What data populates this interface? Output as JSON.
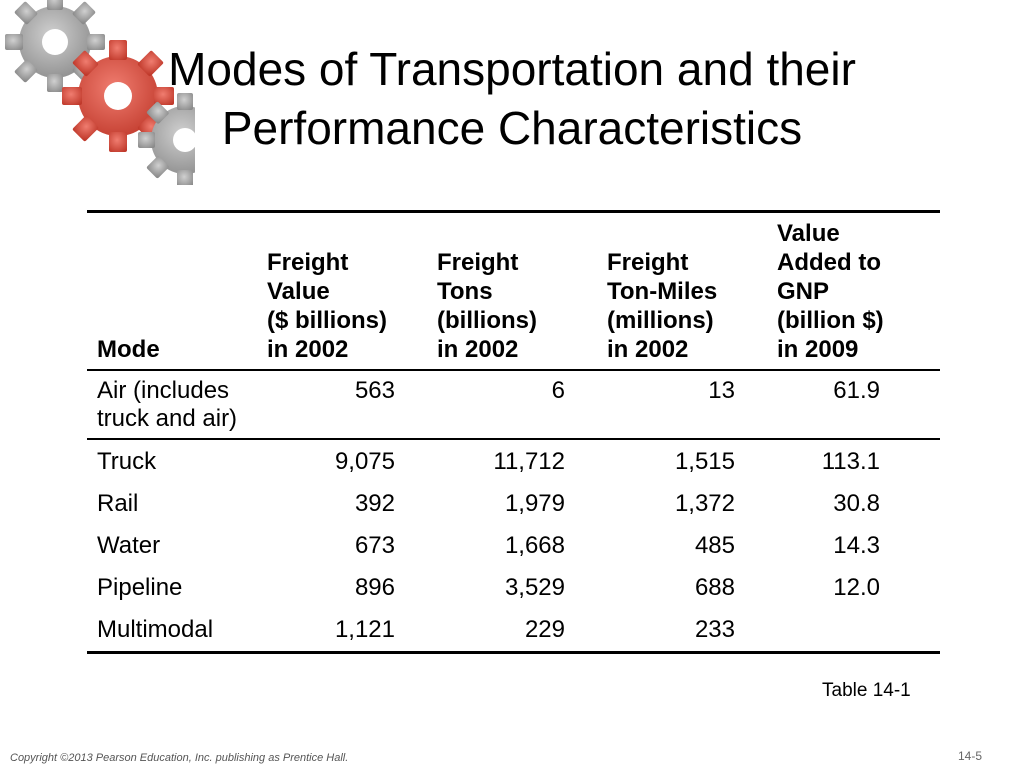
{
  "slide": {
    "title_line1": "Modes of Transportation and their",
    "title_line2": "Performance Characteristics",
    "decoration_icon": "gears-icon"
  },
  "table": {
    "headers": [
      [
        "Mode"
      ],
      [
        "Freight",
        "Value",
        "($ billions)",
        "in 2002"
      ],
      [
        "Freight",
        "Tons",
        "(billions)",
        "in 2002"
      ],
      [
        "Freight",
        "Ton-Miles",
        "(millions)",
        "in 2002"
      ],
      [
        "Value",
        "Added to",
        "GNP",
        "(billion $)",
        "in 2009"
      ]
    ],
    "air_row": {
      "mode_line1": "Air (includes",
      "mode_line2": "truck and air)",
      "values": [
        "563",
        "6",
        "13",
        "61.9"
      ]
    },
    "rows": [
      {
        "mode": "Truck",
        "values": [
          "9,075",
          "11,712",
          "1,515",
          "113.1"
        ]
      },
      {
        "mode": "Rail",
        "values": [
          "392",
          "1,979",
          "1,372",
          "30.8"
        ]
      },
      {
        "mode": "Water",
        "values": [
          "673",
          "1,668",
          "485",
          "14.3"
        ]
      },
      {
        "mode": "Pipeline",
        "values": [
          "896",
          "3,529",
          "688",
          "12.0"
        ]
      },
      {
        "mode": "Multimodal",
        "values": [
          "1,121",
          "229",
          "233",
          ""
        ]
      }
    ],
    "caption": "Table 14-1"
  },
  "footer": {
    "copyright": "Copyright ©2013 Pearson Education, Inc. publishing as Prentice Hall.",
    "page_number": "14-5"
  },
  "colors": {
    "gear_gray": "#a6a6a6",
    "gear_red": "#d9473c"
  }
}
